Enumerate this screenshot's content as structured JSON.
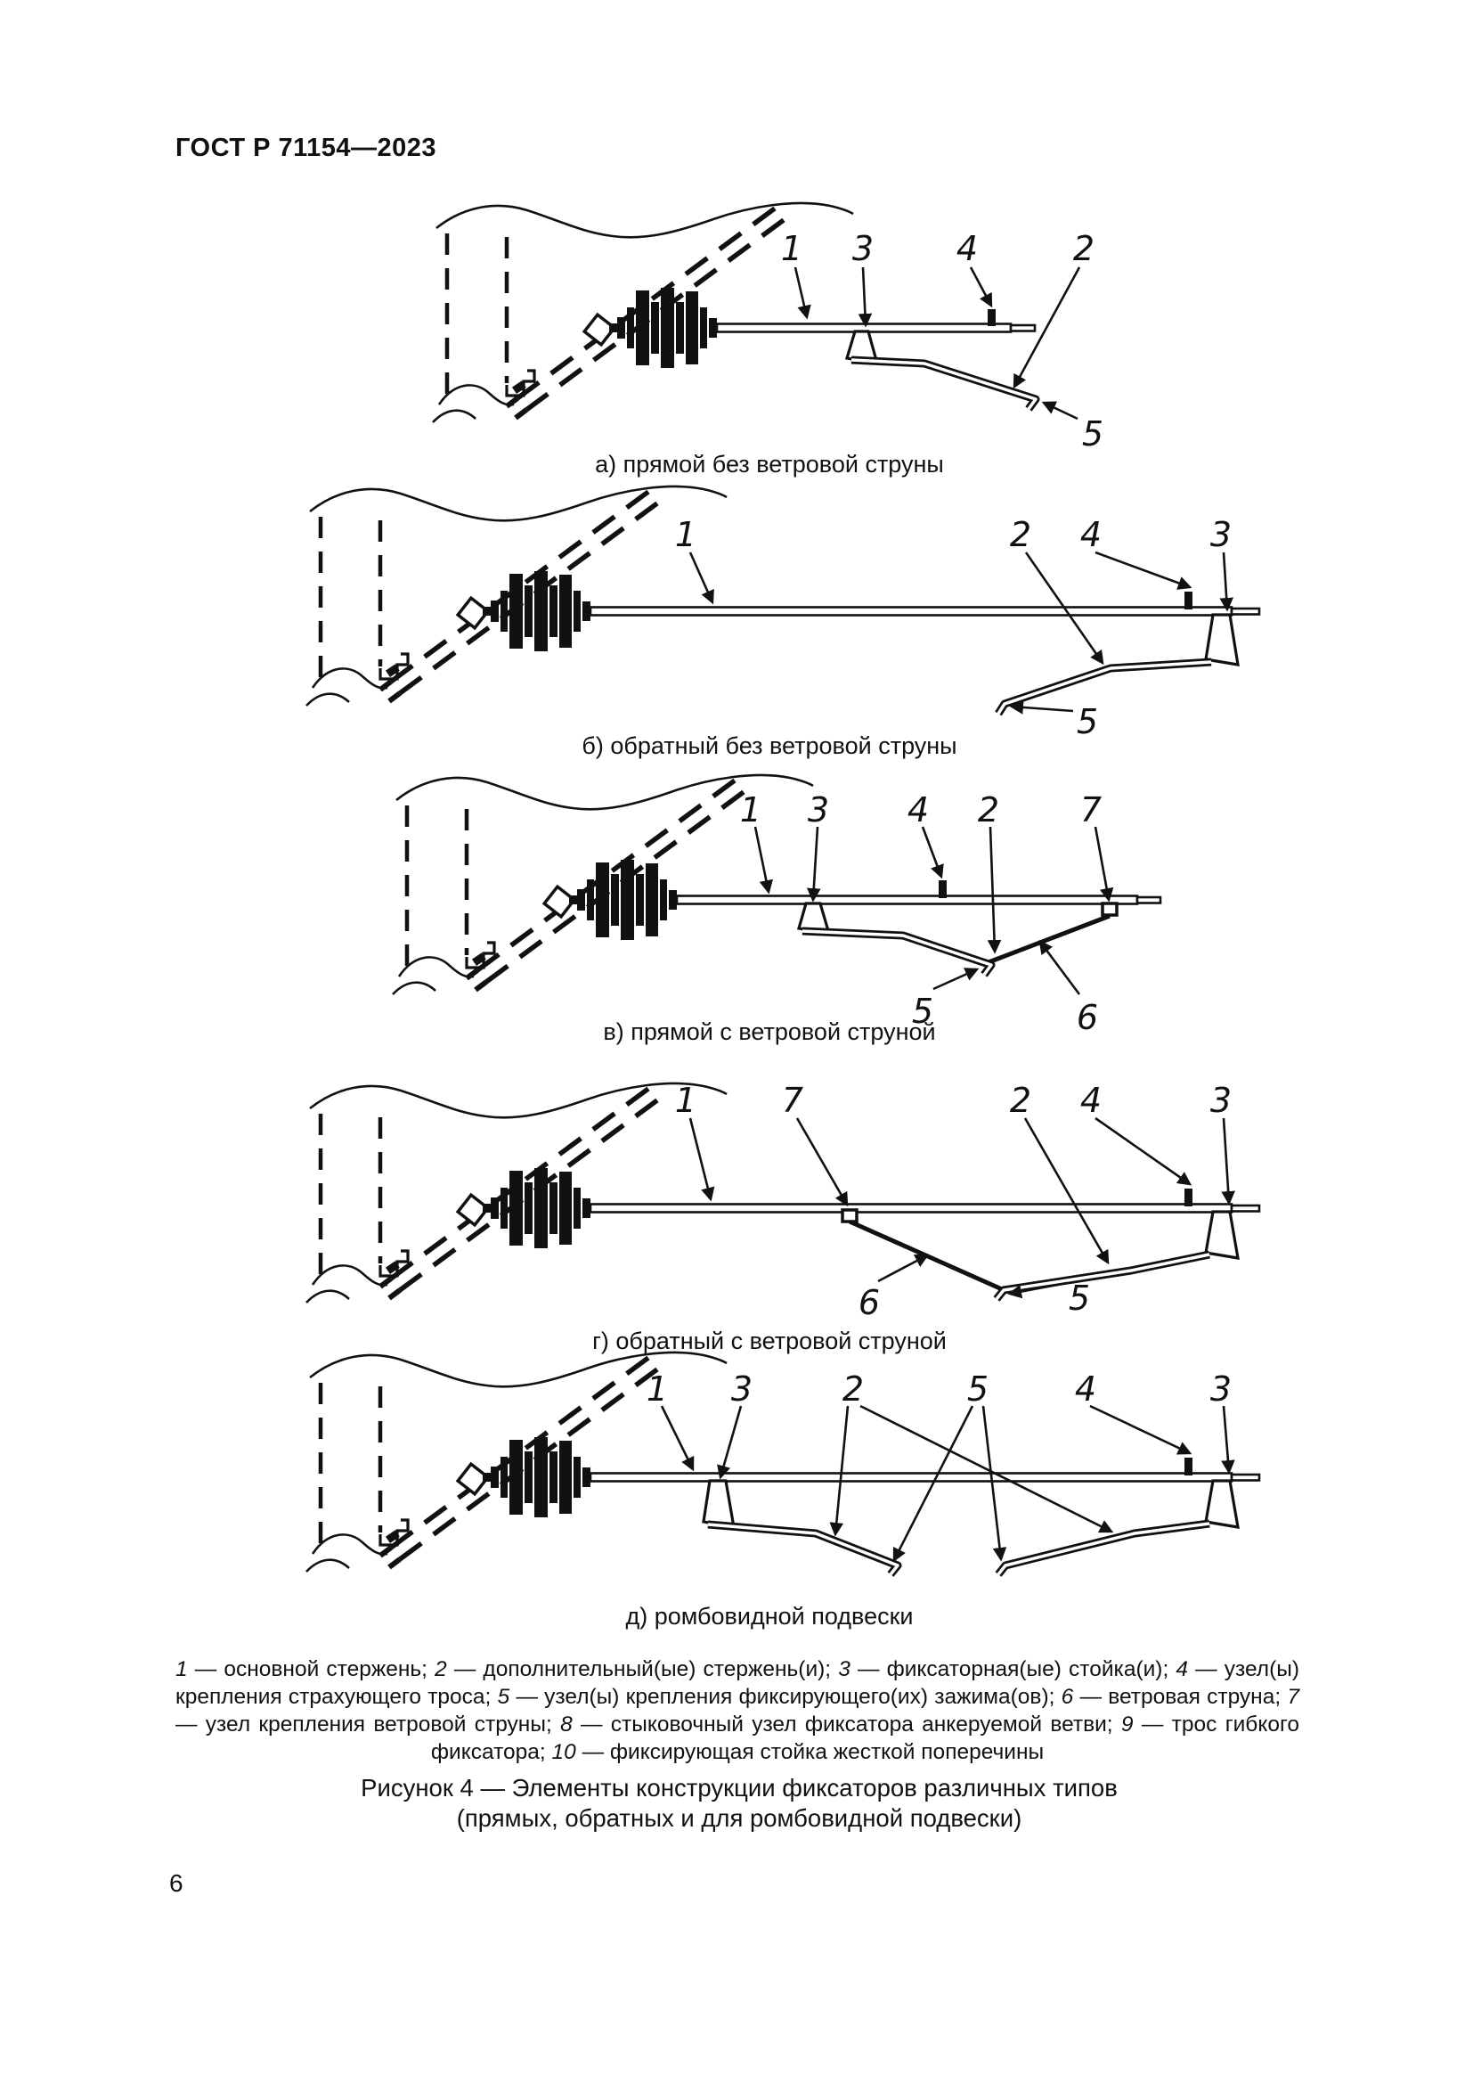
{
  "page": {
    "header": "ГОСТ Р 71154—2023",
    "number": "6"
  },
  "diagrams": [
    {
      "caption": "а) прямой без ветровой струны",
      "labels": [
        "1",
        "3",
        "4",
        "2",
        "5"
      ]
    },
    {
      "caption": "б) обратный без ветровой струны",
      "labels": [
        "1",
        "2",
        "4",
        "3",
        "5"
      ]
    },
    {
      "caption": "в) прямой с ветровой струной",
      "labels": [
        "1",
        "3",
        "4",
        "2",
        "7",
        "5",
        "6"
      ]
    },
    {
      "caption": "г) обратный с ветровой струной",
      "labels": [
        "1",
        "7",
        "2",
        "4",
        "3",
        "6",
        "5"
      ]
    },
    {
      "caption": "д) ромбовидной подвески",
      "labels": [
        "1",
        "3",
        "2",
        "5",
        "4",
        "3"
      ]
    }
  ],
  "figure": {
    "legend_items": [
      {
        "num": "1",
        "text": "основной стержень"
      },
      {
        "num": "2",
        "text": "дополнительный(ые) стержень(и)"
      },
      {
        "num": "3",
        "text": "фиксаторная(ые) стойка(и)"
      },
      {
        "num": "4",
        "text": "узел(ы) крепления страхующего троса"
      },
      {
        "num": "5",
        "text": "узел(ы) крепления фиксирующего(их) зажима(ов)"
      },
      {
        "num": "6",
        "text": "ветровая струна"
      },
      {
        "num": "7",
        "text": "узел крепления ветровой струны"
      },
      {
        "num": "8",
        "text": "стыковочный узел фиксатора анкеруемой ветви"
      },
      {
        "num": "9",
        "text": "трос гибкого фиксатора"
      },
      {
        "num": "10",
        "text": "фиксирующая стойка жесткой поперечины"
      }
    ],
    "caption_line1": "Рисунок 4 — Элементы конструкции фиксаторов различных типов",
    "caption_line2": "(прямых,  обратных  и  для  ромбовидной  подвески)"
  }
}
